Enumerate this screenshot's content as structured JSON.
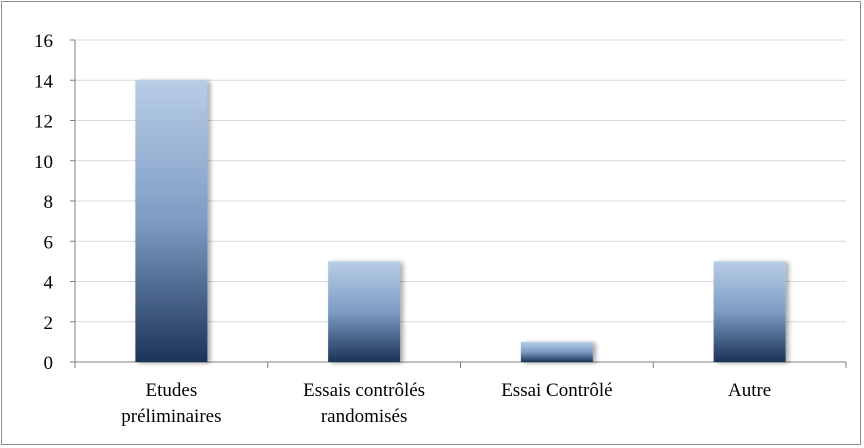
{
  "chart_data": {
    "type": "bar",
    "title": "",
    "xlabel": "",
    "ylabel": "",
    "categories": [
      [
        "Etudes",
        "préliminaires"
      ],
      [
        "Essais contrôlés",
        "randomisés"
      ],
      [
        "Essai Contrôlé"
      ],
      [
        "Autre"
      ]
    ],
    "values": [
      14,
      5,
      1,
      5
    ],
    "ylim": [
      0,
      16
    ],
    "yticks": [
      "0",
      "2",
      "4",
      "6",
      "8",
      "10",
      "12",
      "14",
      "16"
    ],
    "grid": true,
    "legend": "none",
    "colors": {
      "bar_top": "#b8cde6",
      "bar_mid": "#7d9cc4",
      "bar_bottom": "#1c3358",
      "grid": "#d9d9d9",
      "axis": "#7f7f7f"
    }
  }
}
